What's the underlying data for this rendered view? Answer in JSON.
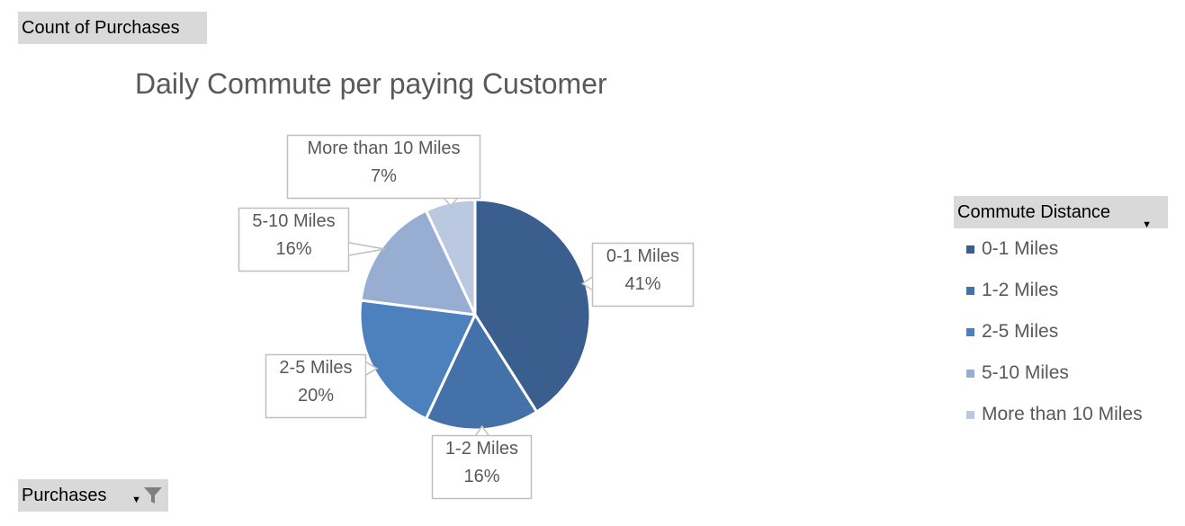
{
  "field_buttons": {
    "values_label": "Count of Purchases",
    "axis_label": "Purchases"
  },
  "legend": {
    "header": "Commute Distance"
  },
  "chart_data": {
    "type": "pie",
    "title": "Daily Commute per paying Customer",
    "categories": [
      "0-1 Miles",
      "1-2 Miles",
      "2-5 Miles",
      "5-10 Miles",
      "More than 10 Miles"
    ],
    "values": [
      41,
      16,
      20,
      16,
      7
    ],
    "value_labels": [
      "41%",
      "16%",
      "20%",
      "16%",
      "7%"
    ],
    "colors": [
      "#3a5f8f",
      "#4472a8",
      "#4d81bd",
      "#97aed2",
      "#bac8e0"
    ],
    "legend_position": "right",
    "start_angle_deg": 0,
    "direction": "clockwise"
  }
}
